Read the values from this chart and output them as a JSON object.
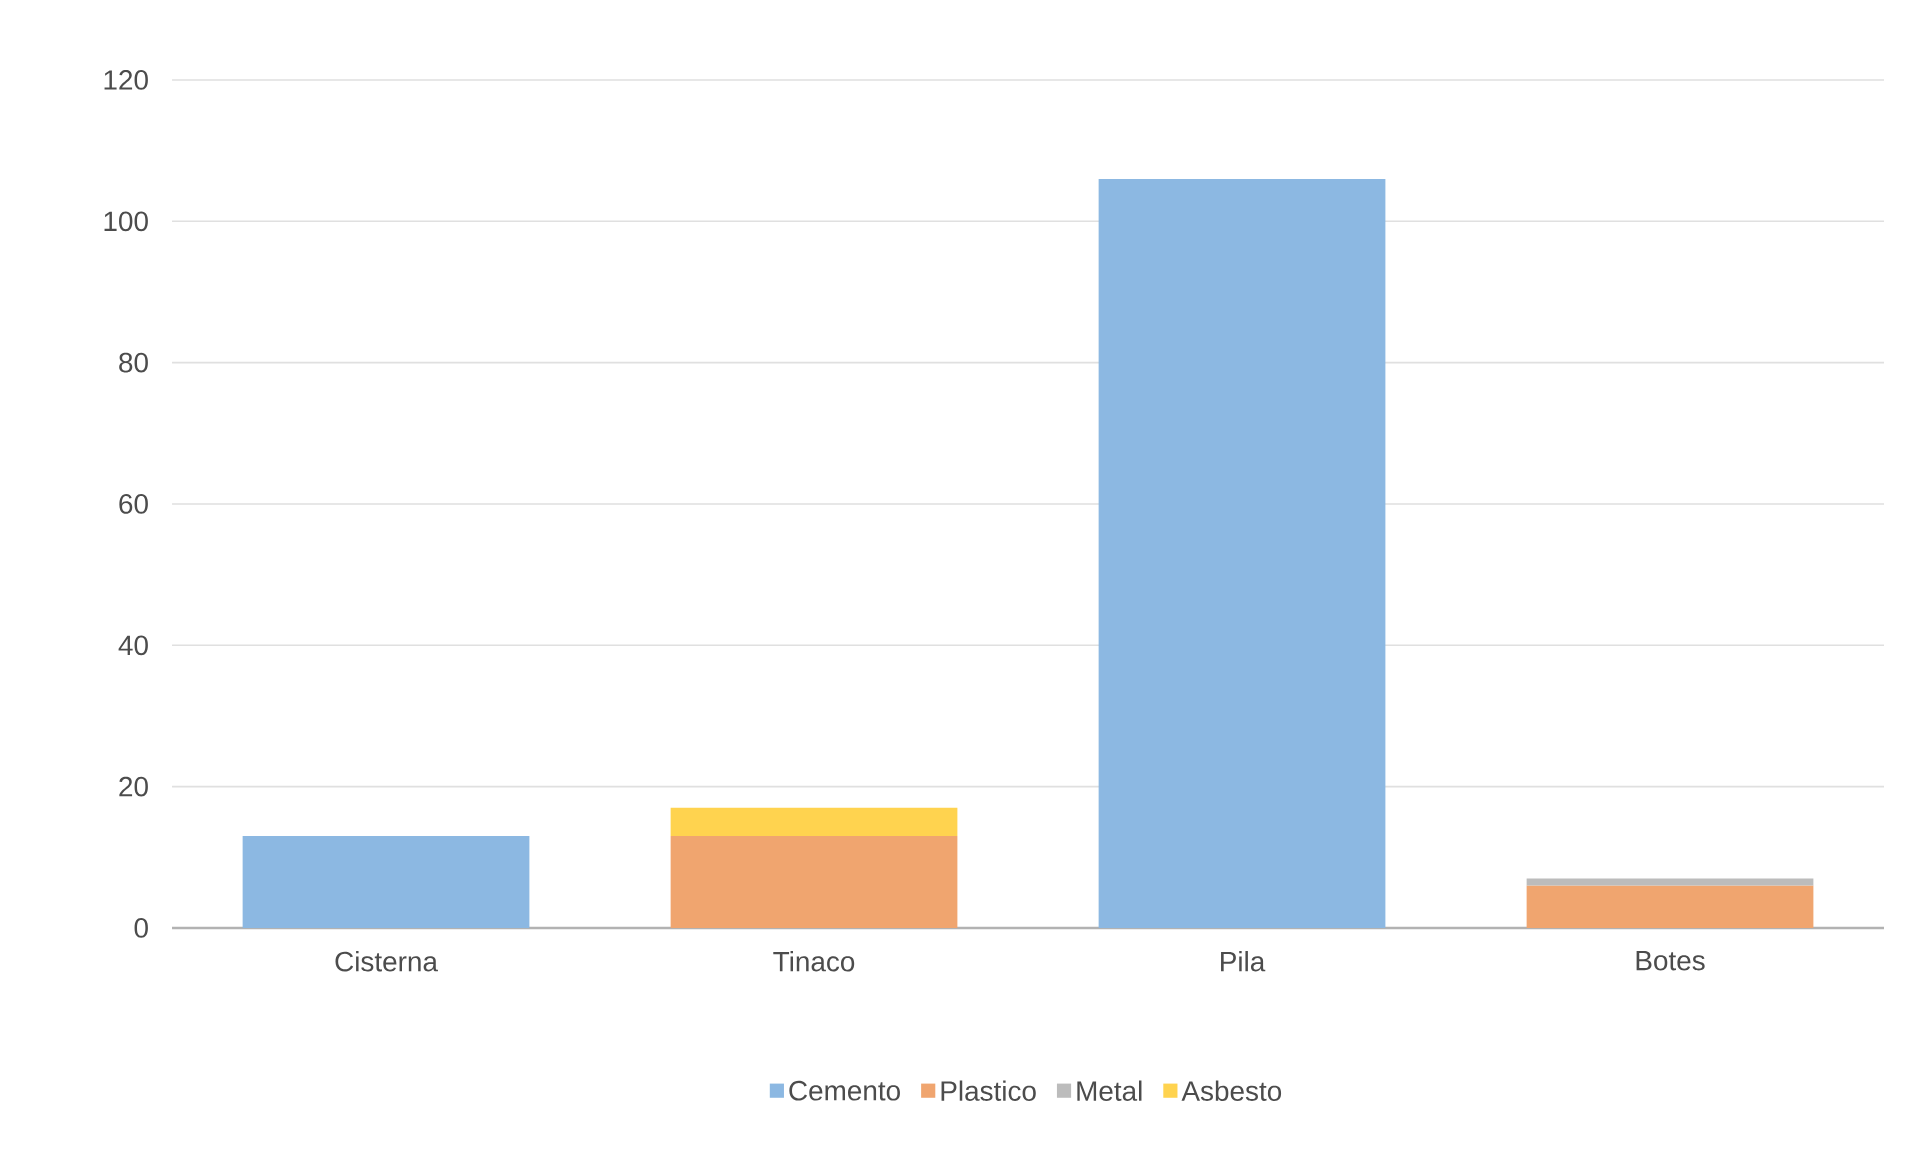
{
  "chart_data": {
    "type": "bar",
    "stacked": true,
    "categories": [
      "Cisterna",
      "Tinaco",
      "Pila",
      "Botes"
    ],
    "series": [
      {
        "name": "Cemento",
        "color": "#8cb8e2",
        "values": [
          13,
          null,
          106,
          null
        ]
      },
      {
        "name": "Plastico",
        "color": "#f0a56f",
        "values": [
          null,
          13,
          null,
          6
        ]
      },
      {
        "name": "Metal",
        "color": "#bcbcbc",
        "values": [
          null,
          null,
          null,
          1
        ]
      },
      {
        "name": "Asbesto",
        "color": "#ffd34f",
        "values": [
          null,
          4,
          null,
          null
        ]
      }
    ],
    "ylim": [
      0,
      120
    ],
    "yticks": [
      0,
      20,
      40,
      60,
      80,
      100,
      120
    ],
    "grid": "y",
    "legend": "bottom"
  }
}
